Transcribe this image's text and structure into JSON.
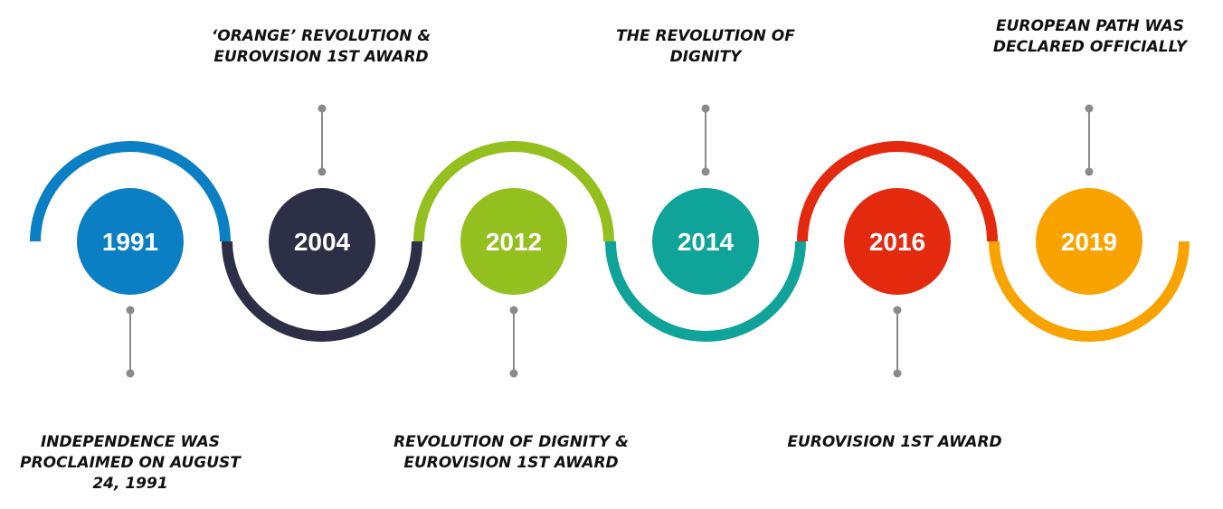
{
  "milestones": [
    {
      "year": "1991",
      "color": "#0B7FC4",
      "caption": "INDEPENDENCE WAS PROCLAIMED ON AUGUST 24, 1991",
      "caption_lines": [
        "INDEPENDENCE WAS",
        "PROCLAIMED ON AUGUST",
        "24, 1991"
      ],
      "caption_position": "below"
    },
    {
      "year": "2004",
      "color": "#2C2F45",
      "caption": "‘ORANGE’ REVOLUTION & EUROVISION 1ST AWARD",
      "caption_lines": [
        "‘ORANGE’ REVOLUTION &",
        "EUROVISION 1ST AWARD"
      ],
      "caption_position": "above"
    },
    {
      "year": "2012",
      "color": "#93C01F",
      "caption": "REVOLUTION OF DIGNITY & EUROVISION 1ST AWARD",
      "caption_lines": [
        "REVOLUTION OF DIGNITY &",
        "EUROVISION 1ST AWARD"
      ],
      "caption_position": "below"
    },
    {
      "year": "2014",
      "color": "#0FA39A",
      "caption": "THE REVOLUTION OF DIGNITY",
      "caption_lines": [
        "THE REVOLUTION OF",
        "DIGNITY"
      ],
      "caption_position": "above"
    },
    {
      "year": "2016",
      "color": "#E3290E",
      "caption": "EUROVISION 1ST AWARD",
      "caption_lines": [
        "EUROVISION 1ST AWARD"
      ],
      "caption_position": "below"
    },
    {
      "year": "2019",
      "color": "#F9A300",
      "caption": "EUROPEAN PATH WAS DECLARED OFFICIALLY",
      "caption_lines": [
        "EUROPEAN PATH WAS",
        "DECLARED OFFICIALLY"
      ],
      "caption_position": "above"
    }
  ],
  "connector_color": "#8A8A8A"
}
